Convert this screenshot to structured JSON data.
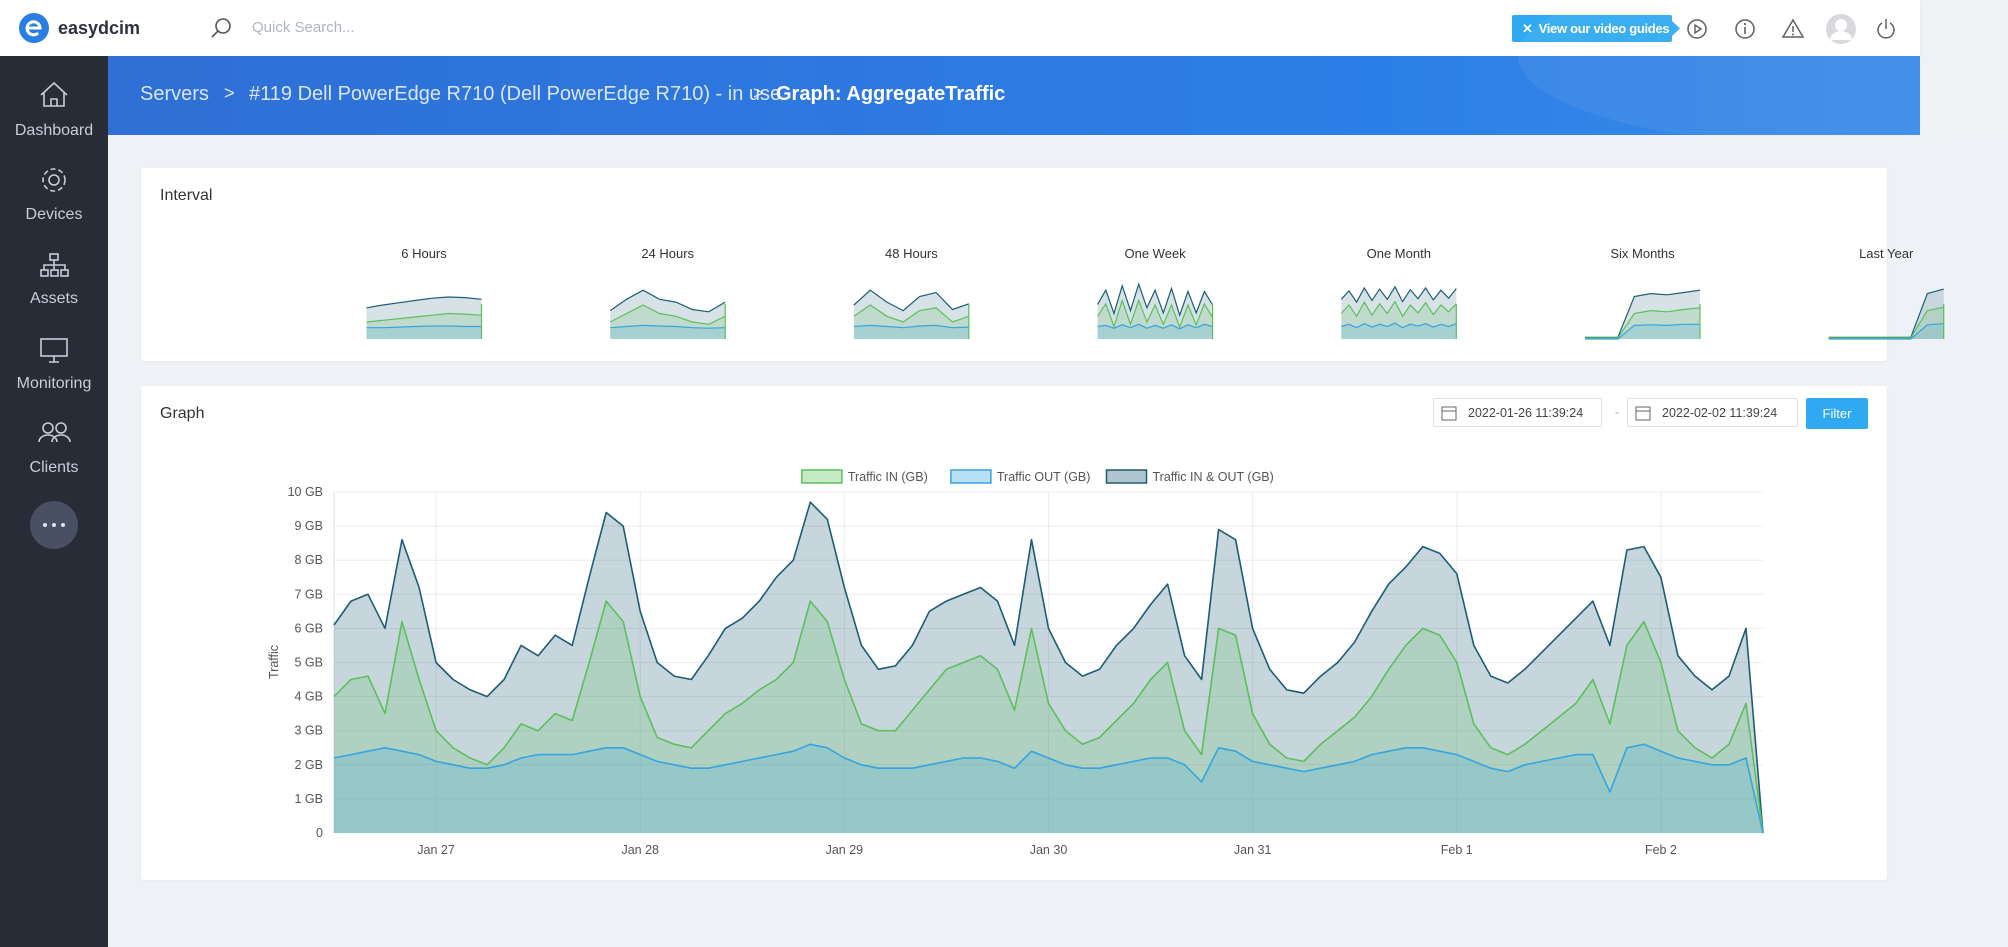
{
  "topbar": {
    "brand": "easydcim",
    "search_placeholder": "Quick Search...",
    "guide_button": "View our video guides"
  },
  "sidebar": {
    "items": [
      "Dashboard",
      "Devices",
      "Assets",
      "Monitoring",
      "Clients"
    ]
  },
  "breadcrumb": [
    "Servers",
    "#119 Dell PowerEdge R710 (Dell PowerEdge R710) - in use",
    "Graph: AggregateTraffic"
  ],
  "interval_panel": {
    "title": "Interval",
    "intervals": [
      {
        "label": "6 Hours",
        "total": [
          5.5,
          6.0,
          6.4,
          6.8,
          7.2,
          7.4,
          7.3,
          7.0
        ],
        "in": [
          3,
          3.3,
          3.6,
          3.9,
          4.2,
          4.5,
          4.4,
          4.2
        ],
        "out": [
          2,
          2,
          2.1,
          2.2,
          2.3,
          2.3,
          2.2,
          2.2
        ]
      },
      {
        "label": "24 Hours",
        "total": [
          5,
          7,
          8.6,
          7,
          6.5,
          5.2,
          4.8,
          6.5
        ],
        "in": [
          3,
          4.5,
          6,
          4.5,
          4,
          3,
          2.6,
          4
        ],
        "out": [
          2,
          2.2,
          2.4,
          2.3,
          2.2,
          2,
          1.9,
          2
        ]
      },
      {
        "label": "48 Hours",
        "total": [
          6,
          8.6,
          6.5,
          5,
          7.5,
          8.2,
          5.2,
          6.2
        ],
        "in": [
          4,
          6,
          4,
          3,
          5,
          5.5,
          3,
          4
        ],
        "out": [
          2.2,
          2.4,
          2.2,
          2,
          2.3,
          2.4,
          2,
          2.1
        ]
      },
      {
        "label": "One Week",
        "total": [
          6.1,
          8.6,
          4.5,
          9.4,
          5,
          9.7,
          5.5,
          8.6,
          4.6,
          8.9,
          4.2,
          8.4,
          4.6,
          8.4,
          6
        ],
        "in": [
          4,
          6.2,
          2.2,
          6.8,
          2.6,
          6.8,
          3,
          6,
          2.6,
          6,
          2.1,
          6,
          2.5,
          6.2,
          3.8
        ],
        "out": [
          2.2,
          2.4,
          1.9,
          2.5,
          2,
          2.6,
          1.9,
          2.4,
          1.9,
          2.5,
          1.8,
          2.5,
          2,
          2.6,
          2.2
        ]
      },
      {
        "label": "One Month",
        "total": [
          7,
          8.5,
          6.5,
          9,
          6.8,
          8.8,
          7,
          9.2,
          6.6,
          8.7,
          7.1,
          9,
          6.9,
          8.6,
          7.2,
          8.9
        ],
        "in": [
          4.5,
          6,
          4,
          6.5,
          4.2,
          6.2,
          4.5,
          6.6,
          4,
          6,
          4.6,
          6.4,
          4.3,
          6,
          4.8,
          6.2
        ],
        "out": [
          2.2,
          2.6,
          2,
          2.7,
          2.1,
          2.6,
          2.2,
          2.8,
          2,
          2.6,
          2.3,
          2.7,
          2.1,
          2.6,
          2.2,
          2.7
        ]
      },
      {
        "label": "Six Months",
        "total": [
          0.3,
          0.3,
          0.3,
          7.5,
          8,
          7.8,
          8.2,
          8.6
        ],
        "in": [
          0.2,
          0.2,
          0.2,
          4.5,
          5,
          4.8,
          5.2,
          5.5
        ],
        "out": [
          0,
          0,
          0,
          2.4,
          2.5,
          2.4,
          2.6,
          2.6
        ]
      },
      {
        "label": "Last Year",
        "total": [
          0.3,
          0.3,
          0.3,
          0.3,
          0.3,
          0.3,
          8,
          8.8
        ],
        "in": [
          0.2,
          0.2,
          0.2,
          0.2,
          0.2,
          0.2,
          5,
          5.6
        ],
        "out": [
          0,
          0,
          0,
          0,
          0,
          0,
          2.5,
          2.7
        ]
      }
    ]
  },
  "graph_panel": {
    "title": "Graph",
    "date_from": "2022-01-26 11:39:24",
    "separator": "-",
    "date_to": "2022-02-02 11:39:24",
    "filter_button": "Filter"
  },
  "chart_data": {
    "type": "area",
    "y_label": "Traffic",
    "categories": [
      null,
      null,
      null,
      null,
      null,
      null,
      "Jan 27",
      null,
      null,
      null,
      null,
      null,
      null,
      null,
      null,
      null,
      null,
      null,
      "Jan 28",
      null,
      null,
      null,
      null,
      null,
      null,
      null,
      null,
      null,
      null,
      null,
      "Jan 29",
      null,
      null,
      null,
      null,
      null,
      null,
      null,
      null,
      null,
      null,
      null,
      "Jan 30",
      null,
      null,
      null,
      null,
      null,
      null,
      null,
      null,
      null,
      null,
      null,
      "Jan 31",
      null,
      null,
      null,
      null,
      null,
      null,
      null,
      null,
      null,
      null,
      null,
      "Feb 1",
      null,
      null,
      null,
      null,
      null,
      null,
      null,
      null,
      null,
      null,
      null,
      "Feb 2",
      null,
      null,
      null,
      null,
      null,
      null
    ],
    "series": [
      {
        "name": "Traffic IN & OUT (GB)",
        "color": "#1d5d74",
        "values": [
          6.1,
          6.8,
          7.0,
          6.0,
          8.6,
          7.2,
          5.0,
          4.5,
          4.2,
          4.0,
          4.5,
          5.5,
          5.2,
          5.8,
          5.5,
          7.5,
          9.4,
          9.0,
          6.5,
          5.0,
          4.6,
          4.5,
          5.2,
          6.0,
          6.3,
          6.8,
          7.5,
          8.0,
          9.7,
          9.2,
          7.2,
          5.5,
          4.8,
          4.9,
          5.5,
          6.5,
          6.8,
          7.0,
          7.2,
          6.8,
          5.5,
          8.6,
          6.0,
          5.0,
          4.6,
          4.8,
          5.5,
          6.0,
          6.7,
          7.3,
          5.2,
          4.5,
          8.9,
          8.6,
          6.0,
          4.8,
          4.2,
          4.1,
          4.6,
          5.0,
          5.6,
          6.5,
          7.3,
          7.8,
          8.4,
          8.2,
          7.6,
          5.5,
          4.6,
          4.4,
          4.8,
          5.3,
          5.8,
          6.3,
          6.8,
          5.5,
          8.3,
          8.4,
          7.5,
          5.2,
          4.6,
          4.2,
          4.6,
          6.0,
          0
        ]
      },
      {
        "name": "Traffic IN (GB)",
        "color": "#5cbf5c",
        "values": [
          4.0,
          4.5,
          4.6,
          3.5,
          6.2,
          4.5,
          3.0,
          2.5,
          2.2,
          2.0,
          2.5,
          3.2,
          3.0,
          3.5,
          3.3,
          5.0,
          6.8,
          6.2,
          4.0,
          2.8,
          2.6,
          2.5,
          3.0,
          3.5,
          3.8,
          4.2,
          4.5,
          5.0,
          6.8,
          6.2,
          4.5,
          3.2,
          3.0,
          3.0,
          3.6,
          4.2,
          4.8,
          5.0,
          5.2,
          4.8,
          3.6,
          6.0,
          3.8,
          3.0,
          2.6,
          2.8,
          3.3,
          3.8,
          4.5,
          5.0,
          3.0,
          2.3,
          6.0,
          5.8,
          3.5,
          2.6,
          2.2,
          2.1,
          2.6,
          3.0,
          3.4,
          4.0,
          4.8,
          5.5,
          6.0,
          5.8,
          5.0,
          3.2,
          2.5,
          2.3,
          2.6,
          3.0,
          3.4,
          3.8,
          4.5,
          3.2,
          5.5,
          6.2,
          5.0,
          3.0,
          2.5,
          2.2,
          2.6,
          3.8,
          0
        ]
      },
      {
        "name": "Traffic OUT (GB)",
        "color": "#35a4e0",
        "values": [
          2.2,
          2.3,
          2.4,
          2.5,
          2.4,
          2.3,
          2.1,
          2.0,
          1.9,
          1.9,
          2.0,
          2.2,
          2.3,
          2.3,
          2.3,
          2.4,
          2.5,
          2.5,
          2.3,
          2.1,
          2.0,
          1.9,
          1.9,
          2.0,
          2.1,
          2.2,
          2.3,
          2.4,
          2.6,
          2.5,
          2.2,
          2.0,
          1.9,
          1.9,
          1.9,
          2.0,
          2.1,
          2.2,
          2.2,
          2.1,
          1.9,
          2.4,
          2.2,
          2.0,
          1.9,
          1.9,
          2.0,
          2.1,
          2.2,
          2.2,
          2.0,
          1.5,
          2.5,
          2.4,
          2.1,
          2.0,
          1.9,
          1.8,
          1.9,
          2.0,
          2.1,
          2.3,
          2.4,
          2.5,
          2.5,
          2.4,
          2.3,
          2.1,
          1.9,
          1.8,
          2.0,
          2.1,
          2.2,
          2.3,
          2.3,
          1.2,
          2.5,
          2.6,
          2.4,
          2.2,
          2.1,
          2.0,
          2.0,
          2.2,
          0
        ]
      }
    ],
    "legend_order": [
      1,
      2,
      0
    ],
    "ylim": [
      0,
      10
    ],
    "yticks": [
      0,
      {
        "value": 1,
        "label": "1 GB"
      },
      {
        "value": 2,
        "label": "2 GB"
      },
      {
        "value": 3,
        "label": "3 GB"
      },
      {
        "value": 4,
        "label": "4 GB"
      },
      {
        "value": 5,
        "label": "5 GB"
      },
      {
        "value": 6,
        "label": "6 GB"
      },
      {
        "value": 7,
        "label": "7 GB"
      },
      {
        "value": 8,
        "label": "8 GB"
      },
      {
        "value": 9,
        "label": "9 GB"
      },
      {
        "value": 10,
        "label": "10 GB"
      }
    ],
    "grid": true,
    "legend": "top"
  }
}
